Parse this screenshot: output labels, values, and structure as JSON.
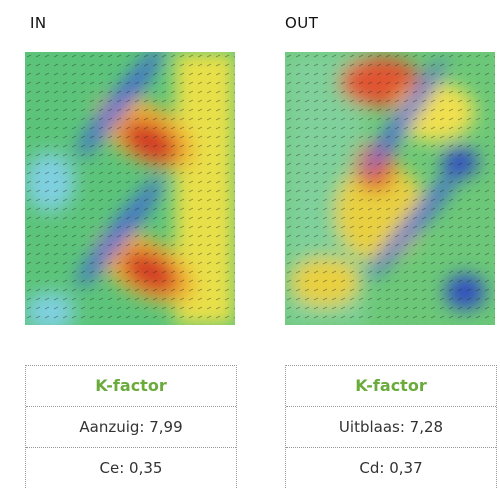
{
  "panels": [
    {
      "label": "IN",
      "table": {
        "header": "K-factor",
        "rows": [
          "Aanzuig: 7,99",
          "Ce: 0,35"
        ]
      }
    },
    {
      "label": "OUT",
      "table": {
        "header": "K-factor",
        "rows": [
          "Uitblaas: 7,28",
          "Cd: 0,37"
        ]
      }
    }
  ]
}
